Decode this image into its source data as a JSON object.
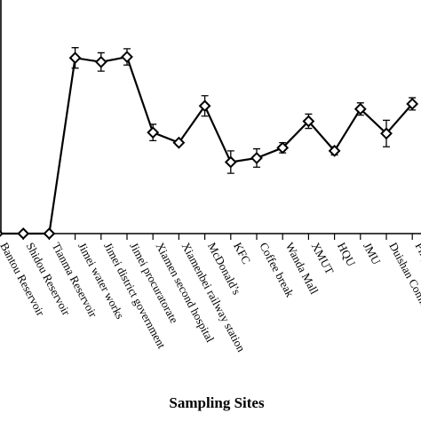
{
  "chart_data": {
    "type": "line",
    "title": "",
    "xlabel": "Sampling Sites",
    "ylabel": "",
    "grid": false,
    "ylim": [
      0,
      100
    ],
    "categories": [
      "Bantou Reservoir",
      "Shidou Reservoir",
      "Tianma Reservoir",
      "Jimei water works",
      "Jimei district government",
      "Jimei procuratorate",
      "Xiamen second hospital",
      "Xiamenbei railway station",
      "McDonald’s",
      "KFC",
      "Coffee break",
      "Wanda Mall",
      "XMUT",
      "HQU",
      "JMU",
      "Duishan Community",
      "Pingshan"
    ],
    "values": [
      0,
      0,
      0,
      86.0,
      84.0,
      86.5,
      49.5,
      44.5,
      62.5,
      35.0,
      37.0,
      42.0,
      55.0,
      40.5,
      61.0,
      49.0,
      63.5
    ],
    "errors": [
      0,
      0,
      0,
      5.0,
      4.5,
      4.0,
      4.0,
      0,
      5.0,
      5.5,
      4.5,
      2.5,
      3.5,
      2.0,
      3.0,
      6.5,
      3.0
    ]
  }
}
